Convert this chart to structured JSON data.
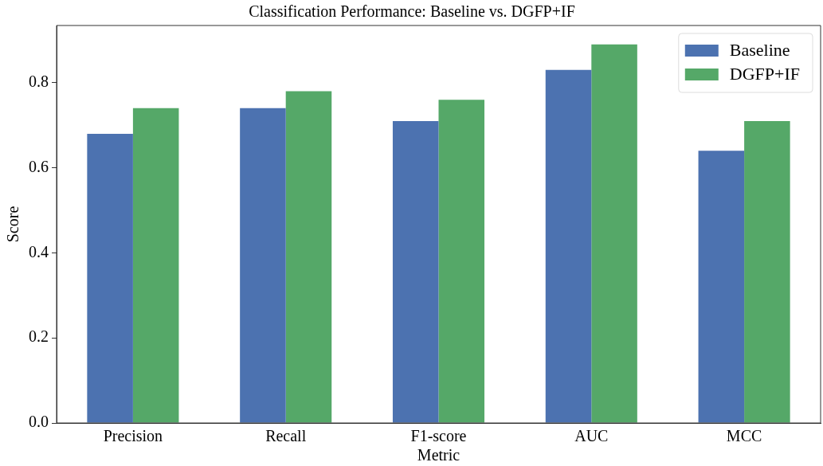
{
  "chart_data": {
    "type": "bar",
    "title": "Classification Performance: Baseline vs. DGFP+IF",
    "xlabel": "Metric",
    "ylabel": "Score",
    "categories": [
      "Precision",
      "Recall",
      "F1-score",
      "AUC",
      "MCC"
    ],
    "series": [
      {
        "name": "Baseline",
        "color": "#4c72b0",
        "values": [
          0.68,
          0.74,
          0.71,
          0.83,
          0.64
        ]
      },
      {
        "name": "DGFP+IF",
        "color": "#55a868",
        "values": [
          0.74,
          0.78,
          0.76,
          0.89,
          0.71
        ]
      }
    ],
    "ylim": [
      0,
      0.9345
    ],
    "yticks": [
      {
        "value": 0,
        "label": "0.0"
      },
      0.2,
      0.4,
      0.6,
      0.8
    ],
    "grid": false,
    "legend": "top right"
  }
}
